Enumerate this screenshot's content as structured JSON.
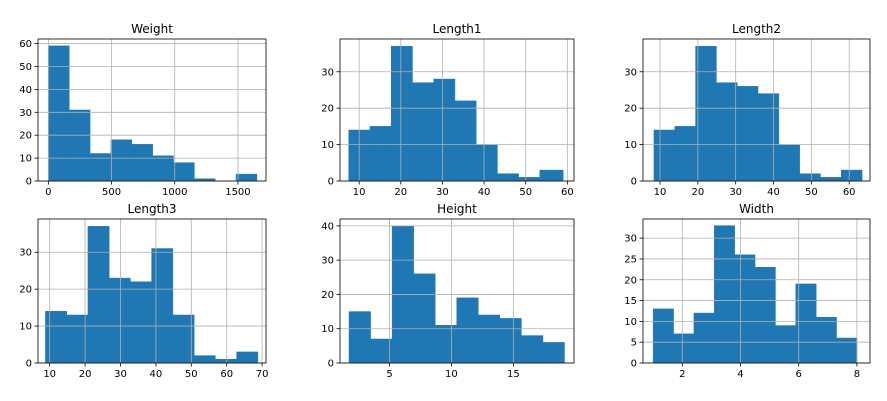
{
  "colors": {
    "bar": "#1f77b4",
    "grid": "#b0b0b0"
  },
  "chart_data": [
    {
      "type": "bar",
      "title": "Weight",
      "xlim": [
        -82,
        1722
      ],
      "ylim": [
        0,
        62
      ],
      "xticks": [
        0,
        500,
        1000,
        1500
      ],
      "xtick_labels": [
        "0",
        "500",
        "1000",
        "1500"
      ],
      "yticks": [
        0,
        10,
        20,
        30,
        40,
        50,
        60
      ],
      "bin_edges": [
        0,
        165,
        330,
        495,
        660,
        825,
        990,
        1155,
        1320,
        1485,
        1650
      ],
      "counts": [
        59,
        31,
        12,
        18,
        16,
        11,
        8,
        1,
        0,
        3
      ],
      "grid": true
    },
    {
      "type": "bar",
      "title": "Length1",
      "xlim": [
        5.4,
        61.6
      ],
      "ylim": [
        0,
        39
      ],
      "xticks": [
        10,
        20,
        30,
        40,
        50,
        60
      ],
      "xtick_labels": [
        "10",
        "20",
        "30",
        "40",
        "50",
        "60"
      ],
      "yticks": [
        0,
        10,
        20,
        30
      ],
      "bin_edges": [
        7.5,
        12.6,
        17.7,
        22.8,
        27.9,
        33.0,
        38.1,
        43.2,
        48.3,
        53.4,
        59.0
      ],
      "counts": [
        14,
        15,
        37,
        27,
        28,
        22,
        10,
        2,
        1,
        3
      ],
      "grid": true
    },
    {
      "type": "bar",
      "title": "Length2",
      "xlim": [
        5.5,
        65.5
      ],
      "ylim": [
        0,
        39
      ],
      "xticks": [
        10,
        20,
        30,
        40,
        50,
        60
      ],
      "xtick_labels": [
        "10",
        "20",
        "30",
        "40",
        "50",
        "60"
      ],
      "yticks": [
        0,
        10,
        20,
        30
      ],
      "bin_edges": [
        8.4,
        13.9,
        19.4,
        24.9,
        30.4,
        35.9,
        41.4,
        46.9,
        52.4,
        57.9,
        63.4
      ],
      "counts": [
        14,
        15,
        37,
        27,
        26,
        24,
        10,
        2,
        1,
        3
      ],
      "grid": true
    },
    {
      "type": "bar",
      "title": "Length3",
      "xlim": [
        6.7,
        71.1
      ],
      "ylim": [
        0,
        39
      ],
      "xticks": [
        10,
        20,
        30,
        40,
        50,
        60,
        70
      ],
      "xtick_labels": [
        "10",
        "20",
        "30",
        "40",
        "50",
        "60",
        "70"
      ],
      "yticks": [
        0,
        10,
        20,
        30
      ],
      "bin_edges": [
        8.8,
        14.8,
        20.8,
        26.8,
        32.8,
        38.8,
        44.8,
        50.8,
        56.8,
        62.8,
        68.8
      ],
      "counts": [
        14,
        13,
        37,
        23,
        22,
        31,
        13,
        2,
        1,
        3
      ],
      "grid": true
    },
    {
      "type": "bar",
      "title": "Height",
      "xlim": [
        1.0,
        19.9
      ],
      "ylim": [
        0,
        42
      ],
      "xticks": [
        5,
        10,
        15
      ],
      "xtick_labels": [
        "5",
        "10",
        "15"
      ],
      "yticks": [
        0,
        10,
        20,
        30,
        40
      ],
      "bin_edges": [
        1.73,
        3.47,
        5.21,
        6.95,
        8.69,
        10.43,
        12.17,
        13.91,
        15.65,
        17.39,
        19.13
      ],
      "counts": [
        15,
        7,
        40,
        26,
        11,
        19,
        14,
        13,
        8,
        6
      ],
      "grid": true
    },
    {
      "type": "bar",
      "title": "Width",
      "xlim": [
        0.65,
        8.45
      ],
      "ylim": [
        0,
        34.6
      ],
      "xticks": [
        2,
        4,
        6,
        8
      ],
      "xtick_labels": [
        "2",
        "4",
        "6",
        "8"
      ],
      "yticks": [
        0,
        5,
        10,
        15,
        20,
        25,
        30
      ],
      "bin_edges": [
        1.0,
        1.7,
        2.4,
        3.1,
        3.8,
        4.5,
        5.2,
        5.9,
        6.6,
        7.3,
        8.0
      ],
      "counts": [
        13,
        7,
        12,
        33,
        26,
        23,
        9,
        19,
        11,
        6
      ],
      "grid": true
    }
  ]
}
